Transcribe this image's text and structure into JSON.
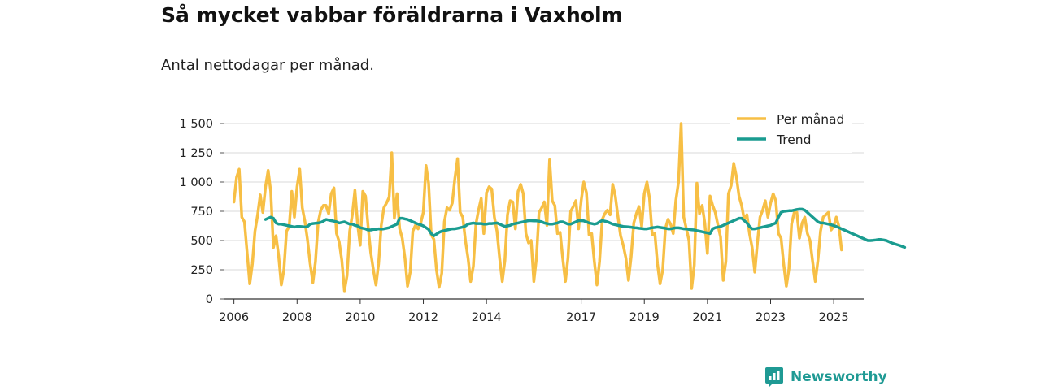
{
  "header": {
    "title": "Så mycket vabbar föräldrarna i Vaxholm",
    "subtitle": "Antal nettodagar per månad."
  },
  "brand": {
    "name": "Newsworthy",
    "icon": "newsworthy-logo-icon",
    "color": "#1f9a94"
  },
  "chart_data": {
    "type": "line",
    "y_ticks": [
      "0",
      "250",
      "500",
      "750",
      "1 000",
      "1 250",
      "1 500"
    ],
    "ylim": [
      0,
      1500
    ],
    "xlim": [
      2005.7,
      2025.95
    ],
    "x_ticks": [
      "2006",
      "2008",
      "2010",
      "2012",
      "2014",
      "2017",
      "2019",
      "2021",
      "2023",
      "2025"
    ],
    "grid": "horizontal",
    "legend_position": "top-right",
    "series": [
      {
        "name": "Per månad",
        "color": "#f7bf45",
        "x_start": 2006.0,
        "step": 0.08333,
        "values": [
          830,
          1040,
          1110,
          700,
          660,
          400,
          130,
          300,
          580,
          720,
          890,
          740,
          960,
          1100,
          920,
          440,
          540,
          370,
          120,
          250,
          580,
          620,
          920,
          700,
          960,
          1110,
          780,
          660,
          500,
          300,
          140,
          320,
          650,
          760,
          800,
          800,
          730,
          900,
          950,
          560,
          490,
          330,
          70,
          200,
          580,
          720,
          930,
          640,
          460,
          920,
          880,
          620,
          400,
          250,
          120,
          300,
          630,
          780,
          820,
          870,
          1250,
          690,
          900,
          600,
          520,
          350,
          110,
          230,
          580,
          630,
          600,
          650,
          740,
          1140,
          990,
          550,
          510,
          250,
          100,
          220,
          660,
          780,
          760,
          820,
          1030,
          1200,
          740,
          700,
          500,
          350,
          150,
          280,
          640,
          760,
          860,
          560,
          910,
          960,
          940,
          700,
          580,
          350,
          150,
          330,
          720,
          840,
          830,
          600,
          920,
          980,
          900,
          560,
          480,
          500,
          150,
          350,
          740,
          780,
          830,
          630,
          1190,
          840,
          800,
          560,
          570,
          350,
          150,
          350,
          750,
          790,
          840,
          600,
          840,
          1000,
          910,
          550,
          560,
          320,
          120,
          320,
          680,
          730,
          760,
          720,
          980,
          880,
          700,
          540,
          460,
          350,
          160,
          360,
          650,
          730,
          790,
          620,
          900,
          1000,
          860,
          550,
          560,
          300,
          130,
          250,
          600,
          680,
          640,
          560,
          840,
          1000,
          1500,
          700,
          600,
          500,
          90,
          290,
          990,
          730,
          800,
          650,
          390,
          880,
          800,
          740,
          630,
          530,
          160,
          320,
          900,
          970,
          1160,
          1050,
          880,
          800,
          680,
          720,
          560,
          440,
          230,
          480,
          700,
          760,
          840,
          700,
          820,
          900,
          840,
          560,
          520,
          300,
          110,
          260,
          640,
          740,
          740,
          520,
          650,
          700,
          560,
          500,
          320,
          150,
          330,
          580,
          700,
          720,
          740,
          590,
          620,
          700,
          620,
          420
        ]
      },
      {
        "name": "Trend",
        "color": "#1a9c90",
        "x_start": 2007.0,
        "step": 0.08333,
        "values": [
          680,
          690,
          700,
          690,
          650,
          640,
          640,
          635,
          630,
          625,
          620,
          615,
          620,
          620,
          618,
          615,
          620,
          640,
          645,
          648,
          650,
          655,
          665,
          680,
          675,
          670,
          665,
          660,
          650,
          655,
          660,
          650,
          640,
          640,
          630,
          625,
          610,
          605,
          600,
          590,
          590,
          595,
          595,
          600,
          598,
          600,
          605,
          610,
          620,
          630,
          640,
          690,
          690,
          685,
          680,
          670,
          660,
          650,
          640,
          635,
          625,
          610,
          595,
          560,
          540,
          555,
          570,
          580,
          585,
          590,
          595,
          600,
          600,
          605,
          610,
          615,
          625,
          640,
          645,
          650,
          645,
          645,
          645,
          640,
          640,
          645,
          645,
          648,
          650,
          640,
          630,
          620,
          625,
          630,
          640,
          645,
          650,
          655,
          660,
          665,
          670,
          670,
          668,
          668,
          665,
          660,
          650,
          645,
          640,
          640,
          645,
          650,
          660,
          660,
          650,
          640,
          640,
          650,
          660,
          670,
          670,
          668,
          660,
          650,
          645,
          640,
          645,
          660,
          670,
          665,
          660,
          650,
          640,
          635,
          630,
          625,
          620,
          618,
          616,
          614,
          610,
          608,
          605,
          603,
          600,
          600,
          605,
          610,
          612,
          615,
          612,
          608,
          605,
          600,
          600,
          605,
          608,
          608,
          605,
          600,
          600,
          595,
          592,
          590,
          585,
          580,
          575,
          570,
          565,
          560,
          600,
          610,
          615,
          620,
          630,
          640,
          650,
          660,
          670,
          680,
          690,
          690,
          670,
          650,
          620,
          600,
          600,
          605,
          610,
          615,
          620,
          625,
          630,
          640,
          650,
          700,
          740,
          750,
          752,
          755,
          755,
          760,
          765,
          768,
          768,
          760,
          740,
          720,
          700,
          680,
          660,
          650,
          650,
          645,
          640,
          635,
          628,
          620,
          610,
          600,
          590,
          580,
          570,
          560,
          550,
          540,
          530,
          520,
          510,
          500,
          500,
          502,
          505,
          508,
          508,
          505,
          500,
          490,
          480,
          472,
          465,
          458,
          450,
          442
        ]
      }
    ]
  }
}
